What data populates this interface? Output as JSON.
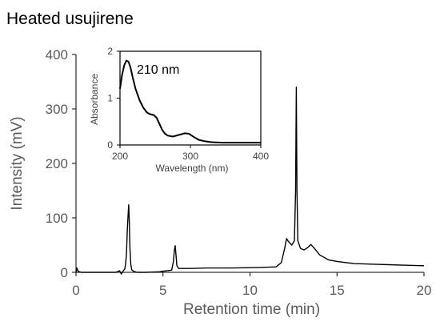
{
  "chart_data": [
    {
      "type": "line",
      "title": "Heated usujirene",
      "xlabel": "Retention time (min)",
      "ylabel": "Intensity (mV)",
      "xlim": [
        0,
        20
      ],
      "ylim": [
        0,
        400
      ],
      "x_ticks": [
        "0",
        "5",
        "10",
        "15",
        "20"
      ],
      "y_ticks": [
        "0",
        "100",
        "200",
        "300",
        "400"
      ],
      "grid": false,
      "series": [
        {
          "color": "#000000",
          "points": [
            [
              0.0,
              0
            ],
            [
              0.05,
              8
            ],
            [
              0.12,
              2
            ],
            [
              0.3,
              0
            ],
            [
              1.0,
              0
            ],
            [
              2.0,
              0
            ],
            [
              2.3,
              0
            ],
            [
              2.5,
              3
            ],
            [
              2.6,
              -3
            ],
            [
              2.7,
              2
            ],
            [
              2.8,
              6
            ],
            [
              2.85,
              15
            ],
            [
              2.9,
              35
            ],
            [
              2.95,
              80
            ],
            [
              3.0,
              110
            ],
            [
              3.03,
              124
            ],
            [
              3.06,
              95
            ],
            [
              3.1,
              45
            ],
            [
              3.15,
              15
            ],
            [
              3.2,
              5
            ],
            [
              3.3,
              2
            ],
            [
              3.5,
              0
            ],
            [
              4.0,
              0
            ],
            [
              4.8,
              1
            ],
            [
              5.0,
              2
            ],
            [
              5.5,
              4
            ],
            [
              5.6,
              20
            ],
            [
              5.65,
              40
            ],
            [
              5.7,
              49
            ],
            [
              5.75,
              30
            ],
            [
              5.8,
              12
            ],
            [
              5.9,
              7
            ],
            [
              6.5,
              7
            ],
            [
              7.5,
              8
            ],
            [
              9.0,
              8
            ],
            [
              10.5,
              9
            ],
            [
              11.5,
              10
            ],
            [
              11.8,
              18
            ],
            [
              12.0,
              45
            ],
            [
              12.1,
              62
            ],
            [
              12.2,
              57
            ],
            [
              12.4,
              50
            ],
            [
              12.55,
              58
            ],
            [
              12.62,
              150
            ],
            [
              12.66,
              340
            ],
            [
              12.7,
              150
            ],
            [
              12.75,
              58
            ],
            [
              12.9,
              44
            ],
            [
              13.1,
              41
            ],
            [
              13.3,
              45
            ],
            [
              13.5,
              51
            ],
            [
              13.7,
              44
            ],
            [
              14.0,
              32
            ],
            [
              14.5,
              23
            ],
            [
              15.0,
              20
            ],
            [
              15.5,
              18
            ],
            [
              16.0,
              16
            ],
            [
              17.0,
              15
            ],
            [
              18.0,
              14
            ],
            [
              19.0,
              13
            ],
            [
              20.0,
              12
            ]
          ]
        }
      ]
    },
    {
      "type": "line",
      "annotation": "210 nm",
      "xlabel": "Wavelength (nm)",
      "ylabel": "Absorbance",
      "xlim": [
        200,
        400
      ],
      "ylim": [
        0,
        2
      ],
      "x_ticks": [
        "200",
        "300",
        "400"
      ],
      "y_ticks": [
        "0",
        "1",
        "2"
      ],
      "series": [
        {
          "color": "#000000",
          "points": [
            [
              200,
              1.2
            ],
            [
              203,
              1.5
            ],
            [
              206,
              1.7
            ],
            [
              209,
              1.8
            ],
            [
              212,
              1.78
            ],
            [
              215,
              1.65
            ],
            [
              218,
              1.45
            ],
            [
              222,
              1.2
            ],
            [
              228,
              0.95
            ],
            [
              233,
              0.8
            ],
            [
              238,
              0.7
            ],
            [
              242,
              0.66
            ],
            [
              248,
              0.64
            ],
            [
              252,
              0.58
            ],
            [
              256,
              0.45
            ],
            [
              260,
              0.32
            ],
            [
              264,
              0.24
            ],
            [
              268,
              0.2
            ],
            [
              275,
              0.18
            ],
            [
              285,
              0.22
            ],
            [
              292,
              0.25
            ],
            [
              298,
              0.24
            ],
            [
              305,
              0.17
            ],
            [
              312,
              0.11
            ],
            [
              320,
              0.08
            ],
            [
              330,
              0.06
            ],
            [
              345,
              0.05
            ],
            [
              365,
              0.05
            ],
            [
              385,
              0.05
            ],
            [
              400,
              0.05
            ]
          ]
        }
      ]
    }
  ]
}
